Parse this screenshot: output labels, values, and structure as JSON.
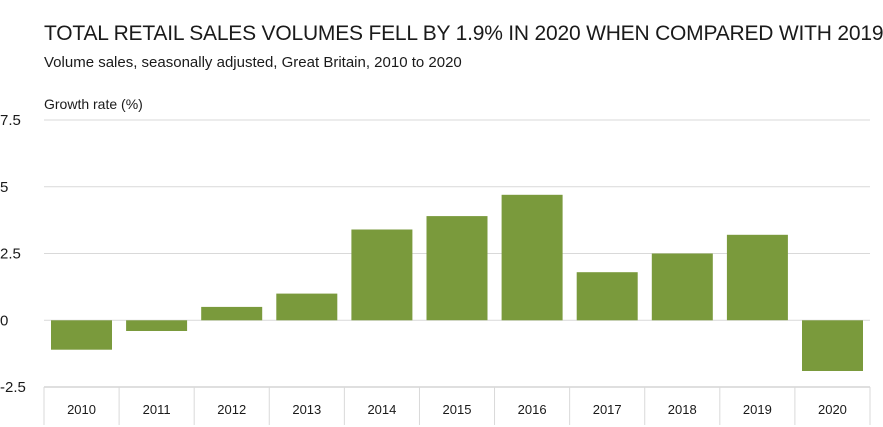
{
  "title": "TOTAL RETAIL SALES VOLUMES FELL BY 1.9% IN 2020 WHEN COMPARED WITH 2019",
  "subtitle": "Volume sales, seasonally adjusted, Great Britain, 2010 to 2020",
  "colors": {
    "bar": "#7a9a3c",
    "grid": "#d9d9d9",
    "axis": "#bfbfbf"
  },
  "chart_data": {
    "type": "bar",
    "title": "TOTAL RETAIL SALES VOLUMES FELL BY 1.9% IN 2020 WHEN COMPARED WITH 2019",
    "subtitle": "Volume sales, seasonally adjusted, Great Britain, 2010 to 2020",
    "ylabel": "Growth rate (%)",
    "xlabel": "",
    "categories": [
      "2010",
      "2011",
      "2012",
      "2013",
      "2014",
      "2015",
      "2016",
      "2017",
      "2018",
      "2019",
      "2020"
    ],
    "values": [
      -1.1,
      -0.4,
      0.5,
      1.0,
      3.4,
      3.9,
      4.7,
      1.8,
      2.5,
      3.2,
      -1.9
    ],
    "ylim": [
      -2.5,
      7.5
    ],
    "yticks": [
      7.5,
      5,
      2.5,
      0,
      -2.5
    ],
    "ytick_labels": [
      "7.5",
      "5",
      "2.5",
      "0",
      "-2.5"
    ],
    "grid": true,
    "legend": "none"
  }
}
